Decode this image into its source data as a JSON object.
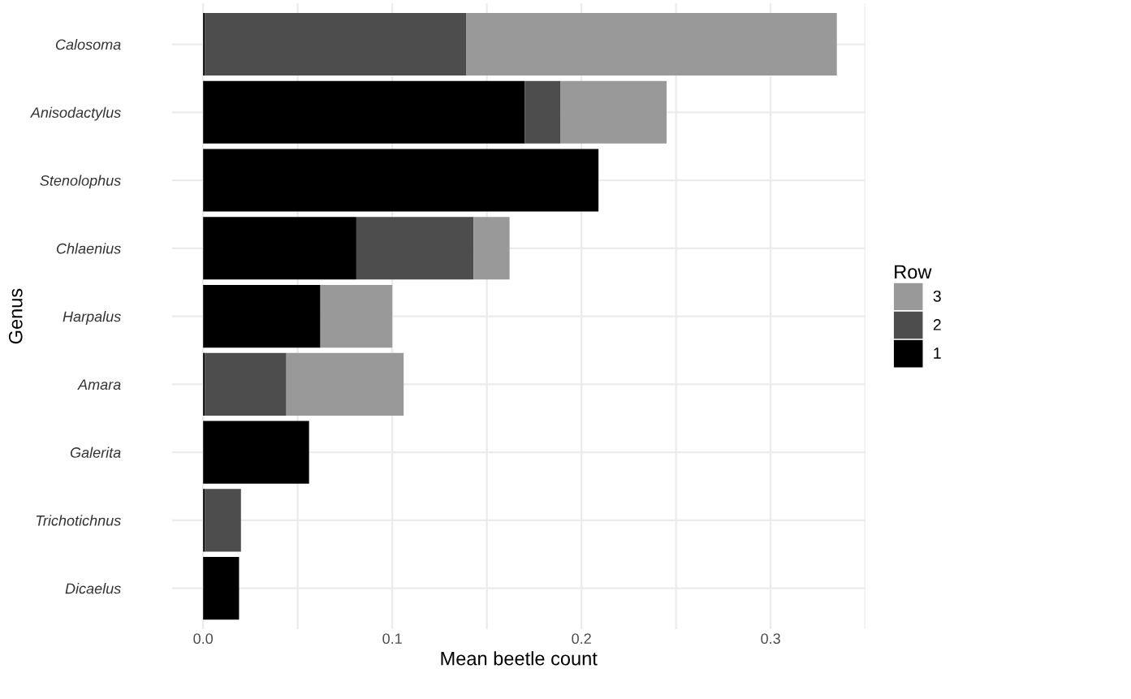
{
  "chart_data": {
    "type": "bar",
    "orientation": "horizontal",
    "stacked": true,
    "xlabel": "Mean beetle count",
    "ylabel": "Genus",
    "legend_title": "Row",
    "legend": "right",
    "grid": true,
    "categories": [
      "Calosoma",
      "Anisodactylus",
      "Stenolophus",
      "Chlaenius",
      "Harpalus",
      "Amara",
      "Galerita",
      "Trichotichnus",
      "Dicaelus"
    ],
    "series": [
      {
        "name": "1",
        "color": "#000000",
        "values": [
          0.001,
          0.17,
          0.209,
          0.081,
          0.062,
          0.001,
          0.056,
          0.001,
          0.019
        ]
      },
      {
        "name": "2",
        "color": "#4d4d4d",
        "values": [
          0.138,
          0.019,
          null,
          0.062,
          null,
          0.043,
          null,
          0.019,
          null
        ]
      },
      {
        "name": "3",
        "color": "#999999",
        "values": [
          0.196,
          0.056,
          null,
          0.019,
          0.038,
          0.062,
          null,
          null,
          null
        ]
      }
    ],
    "xlim": [
      -0.0165,
      0.35
    ],
    "xticks": [
      {
        "value": 0,
        "label": "0.0"
      },
      {
        "value": 0.05,
        "label": null
      },
      0.1,
      {
        "value": 0.15,
        "label": null
      },
      0.2,
      {
        "value": 0.25,
        "label": null
      },
      0.3,
      {
        "value": 0.35,
        "label": null
      }
    ]
  }
}
